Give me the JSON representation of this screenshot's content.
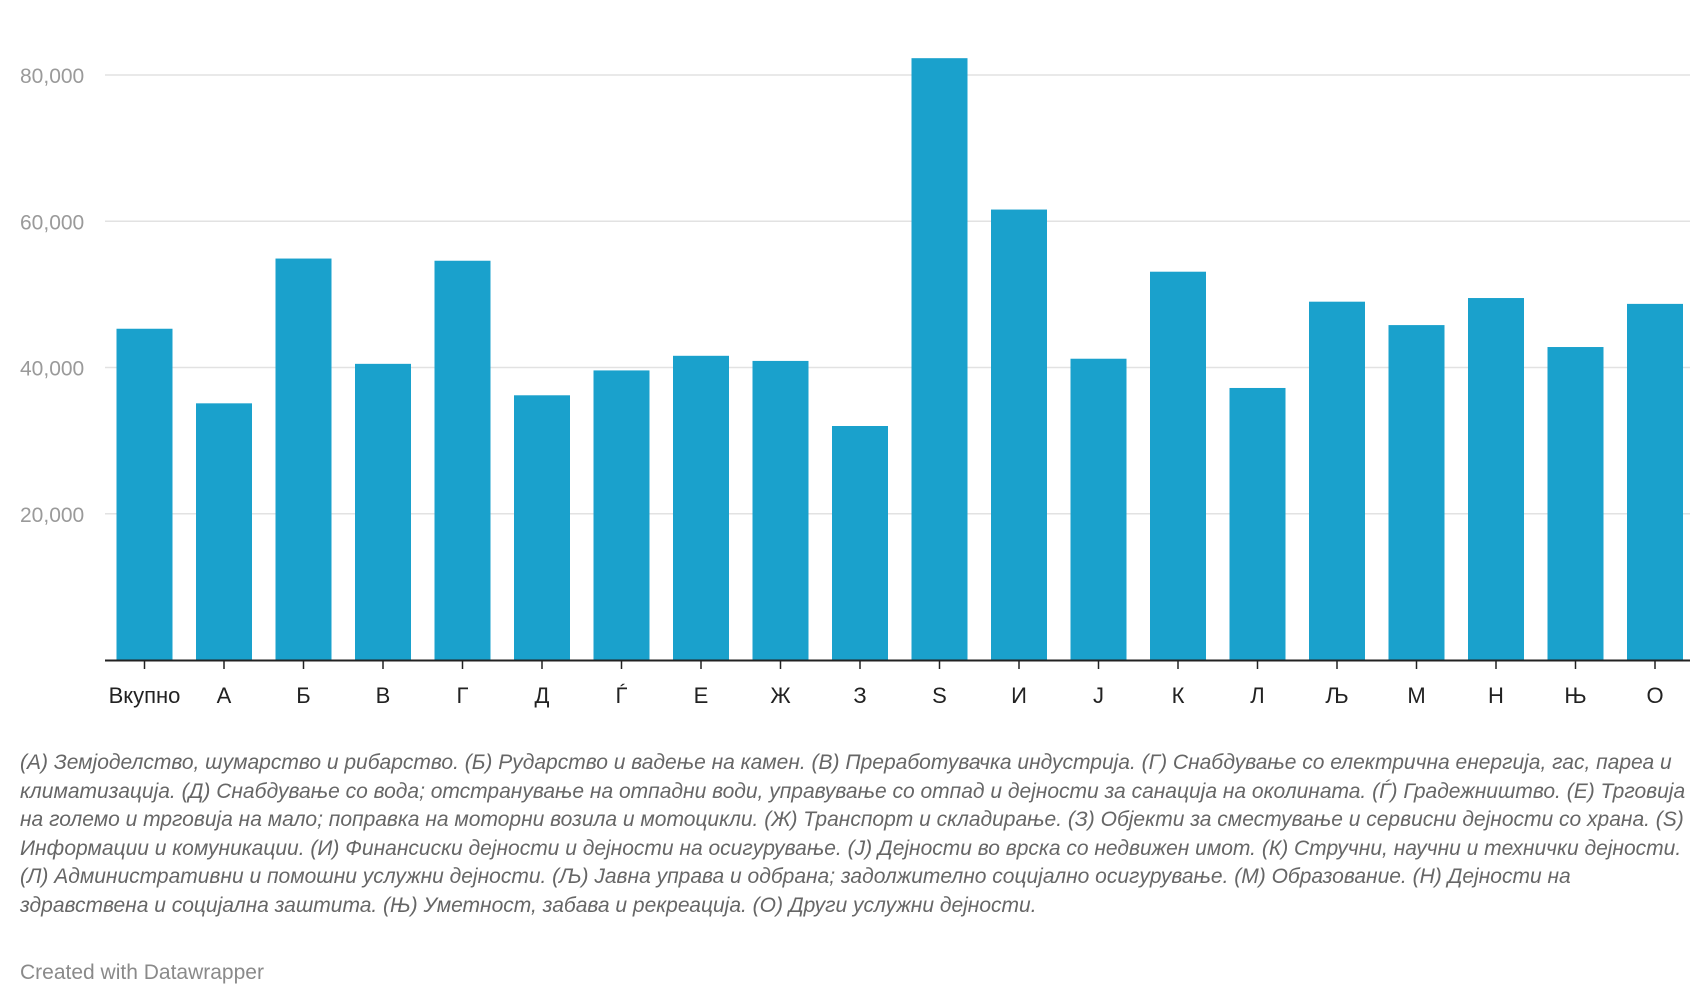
{
  "chart_data": {
    "type": "bar",
    "categories": [
      "Вкупно",
      "А",
      "Б",
      "В",
      "Г",
      "Д",
      "Ѓ",
      "Е",
      "Ж",
      "З",
      "S",
      "И",
      "Ј",
      "К",
      "Л",
      "Љ",
      "М",
      "Н",
      "Њ",
      "О"
    ],
    "values": [
      45300,
      35100,
      54900,
      40500,
      54600,
      36200,
      39600,
      41600,
      40900,
      32000,
      82300,
      61600,
      41200,
      53100,
      37200,
      49000,
      45800,
      49500,
      42800,
      48700
    ],
    "yticks": [
      20000,
      40000,
      60000,
      80000
    ],
    "ytick_labels": [
      "20,000",
      "40,000",
      "60,000",
      "80,000"
    ],
    "ylim": [
      0,
      85000
    ],
    "grid": "horizontal",
    "bar_color": "#1aa1cc",
    "title": "",
    "xlabel": "",
    "ylabel": ""
  },
  "notes": "(А) Земјоделство, шумарство и рибарство. (Б) Рударство и вадење на камен. (В) Преработувачка индустрија. (Г) Снабдување со електрична енергија, гас, пареа и климатизација. (Д) Снабдување со вода; отстранување на отпадни води, управување со отпад и дејности за санација на околината. (Ѓ) Градежништво. (Е) Трговија на големо и трговија на мало; поправка на моторни возила и мотоцикли. (Ж) Транспорт и складирање. (З) Објекти за сместување и сервисни дејности со храна. (S) Информации и комуникации. (И) Финансиски дејности и дејности на осигурување. (Ј) Дејности во врска со недвижен имот. (К) Стручни, научни и технички дејности. (Л) Административни и помошни услужни дејности. (Љ) Јавна управа и одбрана; задолжително социјално осигурување. (М) Образование. (Н) Дејности на здравствена и социјална заштита. (Њ) Уметност, забава и рекреација. (О) Други услужни дејности.",
  "credit": "Created with Datawrapper"
}
